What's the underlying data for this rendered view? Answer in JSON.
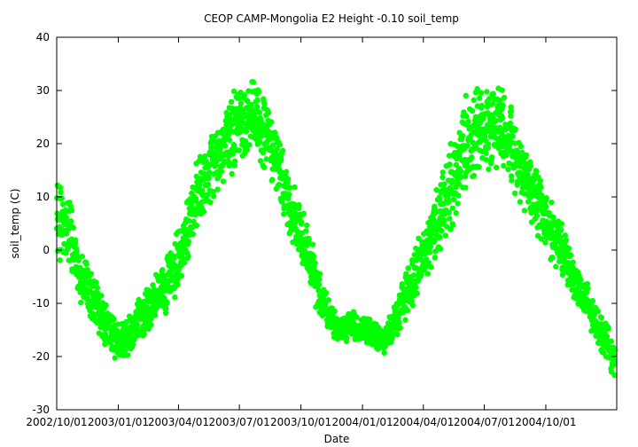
{
  "chart_data": {
    "type": "scatter",
    "title": "CEOP CAMP-Mongolia E2 Height -0.10 soil_temp",
    "xlabel": "Date",
    "ylabel": "soil_temp (C)",
    "xlim": [
      "2002-10-01",
      "2005-01-15"
    ],
    "ylim": [
      -30,
      40
    ],
    "y_ticks": [
      -30,
      -20,
      -10,
      0,
      10,
      20,
      30,
      40
    ],
    "x_ticks": [
      "2002/10/01",
      "2003/01/01",
      "2003/04/01",
      "2003/07/01",
      "2003/10/01",
      "2004/01/01",
      "2004/04/01",
      "2004/07/01",
      "2004/10/01"
    ],
    "grid": false,
    "legend": "none",
    "marker_color": "#00ff00",
    "series": [
      {
        "x": [
          "2002-10-01",
          "2002-10-10",
          "2002-10-20",
          "2002-11-01",
          "2002-11-15",
          "2002-12-01",
          "2002-12-15",
          "2003-01-01",
          "2003-01-15",
          "2003-02-01",
          "2003-02-15",
          "2003-03-01",
          "2003-03-15",
          "2003-04-01",
          "2003-04-15",
          "2003-05-01",
          "2003-05-15",
          "2003-06-01",
          "2003-06-15",
          "2003-07-01",
          "2003-07-15",
          "2003-08-01",
          "2003-08-15",
          "2003-09-01",
          "2003-09-15",
          "2003-10-01",
          "2003-10-15",
          "2003-11-01",
          "2003-11-15",
          "2003-12-01",
          "2003-12-15",
          "2004-01-01",
          "2004-01-15",
          "2004-02-01",
          "2004-02-15",
          "2004-03-01",
          "2004-03-15",
          "2004-04-01",
          "2004-04-15",
          "2004-05-01",
          "2004-05-15",
          "2004-06-01",
          "2004-06-15",
          "2004-07-01",
          "2004-07-15",
          "2004-08-01",
          "2004-08-15",
          "2004-09-01",
          "2004-09-15",
          "2004-10-01",
          "2004-10-15",
          "2004-11-01",
          "2004-11-15",
          "2004-12-01",
          "2004-12-15",
          "2005-01-01",
          "2005-01-12"
        ],
        "y": [
          5,
          6,
          3,
          -3,
          -7,
          -11,
          -14,
          -17,
          -16,
          -13,
          -11,
          -9,
          -6,
          -2,
          5,
          10,
          14,
          18,
          21,
          24,
          25,
          24,
          20,
          15,
          8,
          3,
          -3,
          -9,
          -13,
          -15,
          -14,
          -15,
          -16,
          -17,
          -14,
          -10,
          -6,
          -1,
          4,
          8,
          13,
          20,
          22,
          23,
          24,
          22,
          18,
          14,
          10,
          6,
          2,
          -2,
          -6,
          -10,
          -14,
          -17,
          -22
        ],
        "spread": [
          12,
          12,
          12,
          8,
          7,
          6,
          6,
          6,
          6,
          6,
          7,
          7,
          8,
          9,
          10,
          10,
          10,
          10,
          10,
          11,
          11,
          11,
          10,
          10,
          9,
          8,
          8,
          6,
          5,
          4,
          4,
          4,
          4,
          4,
          5,
          6,
          7,
          8,
          10,
          11,
          12,
          13,
          13,
          13,
          12,
          12,
          11,
          10,
          10,
          9,
          8,
          7,
          7,
          6,
          5,
          5,
          5
        ]
      }
    ]
  }
}
